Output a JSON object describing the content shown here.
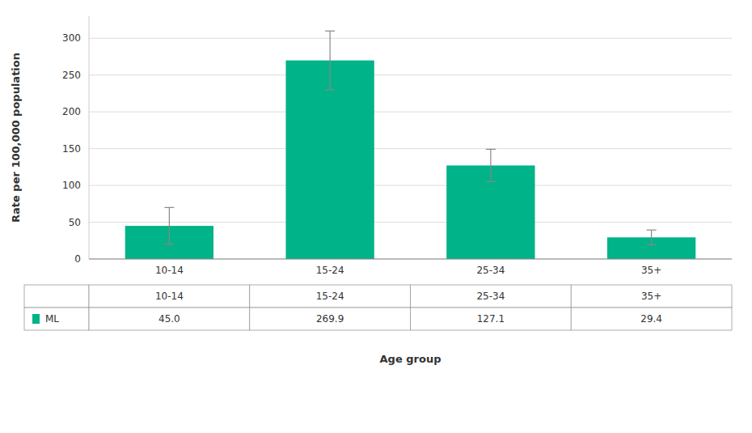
{
  "chart_data": {
    "type": "bar",
    "categories": [
      "10-14",
      "15-24",
      "25-34",
      "35+"
    ],
    "series": [
      {
        "name": "ML",
        "color": "#00B388",
        "values": [
          45.0,
          269.9,
          127.1,
          29.4
        ],
        "errors": [
          25.0,
          40.0,
          22.0,
          10.0
        ],
        "value_labels": [
          "45.0",
          "269.9",
          "127.1",
          "29.4"
        ]
      }
    ],
    "xlabel": "Age group",
    "ylabel": "Rate per 100,000 population",
    "ylim": [
      0,
      330
    ],
    "yticks": [
      0,
      50,
      100,
      150,
      200,
      250,
      300
    ],
    "grid": true,
    "data_labels": true
  }
}
